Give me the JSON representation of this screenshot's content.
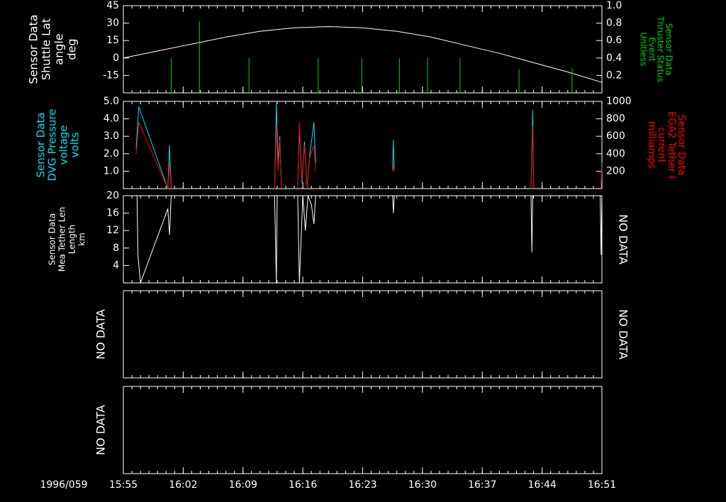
{
  "chart_data": [
    {
      "type": "line",
      "ylabel": [
        "Sensor Data",
        "Shuttle Lat",
        "angle",
        "deg"
      ],
      "ylabel_color": "#ffffff",
      "y2label": [
        "Sensor Data",
        "Thruster Status",
        "Event",
        "Unitless"
      ],
      "y2label_color": "#00d800",
      "xlim": [
        955,
        1011
      ],
      "xticks": [
        955,
        962,
        969,
        976,
        983,
        990,
        997,
        1004,
        1011
      ],
      "ylim": [
        -30,
        45
      ],
      "yticks": [
        -15,
        0,
        15,
        30,
        45
      ],
      "y2lim": [
        0,
        1
      ],
      "y2ticks": [
        0.2,
        0.4,
        0.6,
        0.8,
        {
          "value": 1,
          "label": "1.0"
        }
      ],
      "series": [
        {
          "color": "#ffffff",
          "style": "line",
          "x": [
            955,
            959,
            963,
            967,
            971,
            975,
            979,
            983,
            987,
            991,
            995,
            999,
            1003,
            1007,
            1011
          ],
          "values": [
            0,
            6,
            12,
            18,
            23,
            26,
            27,
            26,
            23,
            18,
            11,
            4,
            -4,
            -12,
            -21
          ]
        },
        {
          "color": "#00d800",
          "style": "spike",
          "axis": "y2",
          "x": [
            960.6,
            963.9,
            969.7,
            977.8,
            982.9,
            987.3,
            990.6,
            994.4,
            1001.3,
            1007.5
          ],
          "values": [
            0.4,
            0.82,
            0.4,
            0.4,
            0.4,
            0.4,
            0.4,
            0.4,
            0.27,
            0.28
          ]
        }
      ]
    },
    {
      "type": "line",
      "ylabel": [
        "Sensor Data",
        "DVG Pressure",
        "voltage",
        "volts"
      ],
      "ylabel_color": "#00e0f0",
      "y2label": [
        "Sensor Data",
        "EGA2 Tether I",
        "current",
        "milliamps"
      ],
      "y2label_color": "#ff0000",
      "xlim": [
        955,
        1011
      ],
      "xticks": [
        955,
        962,
        969,
        976,
        983,
        990,
        997,
        1004,
        1011
      ],
      "ylim": [
        0,
        5
      ],
      "yticks": [
        {
          "value": 1,
          "label": "1.0"
        },
        {
          "value": 2,
          "label": "2.0"
        },
        {
          "value": 3,
          "label": "3.0"
        },
        {
          "value": 4,
          "label": "4.0"
        },
        {
          "value": 5,
          "label": "5.0"
        }
      ],
      "y2lim": [
        0,
        1000
      ],
      "y2ticks": [
        200,
        400,
        600,
        800,
        1000
      ],
      "x": [
        956.5,
        956.8,
        960.2,
        960.4,
        960.6,
        966,
        972.7,
        972.9,
        973.1,
        973.3,
        973.5,
        974.5,
        975.4,
        975.6,
        975.9,
        976.2,
        976.5,
        976.8,
        977.3,
        977.5,
        982,
        986.5,
        986.6,
        986.7,
        995,
        1002.7,
        1002.9,
        1003.0,
        1007,
        1010.9,
        1011
      ],
      "series": [
        {
          "color": "#00e0f0",
          "style": "line",
          "values": [
            2.3,
            4.7,
            0,
            2.5,
            0,
            null,
            0,
            4.9,
            1.5,
            3.0,
            0,
            null,
            0,
            3.5,
            0.3,
            2.7,
            0,
            1.9,
            3.8,
            1.5,
            null,
            1.0,
            2.8,
            1.0,
            null,
            0,
            4.5,
            0,
            null,
            0,
            1.5
          ]
        },
        {
          "color": "#ff0000",
          "style": "line",
          "axis": "y2",
          "values": [
            400,
            760,
            0,
            300,
            0,
            null,
            0,
            730,
            200,
            560,
            0,
            null,
            0,
            760,
            100,
            500,
            0,
            350,
            500,
            200,
            null,
            200,
            260,
            200,
            null,
            0,
            720,
            0,
            null,
            0,
            250
          ]
        }
      ]
    },
    {
      "type": "line",
      "ylabel": [
        "Sensor Data",
        "Mea Tether Len",
        "Length",
        "km"
      ],
      "ylabel_color": "#ffffff",
      "no_data_right": "NO DATA",
      "xlim": [
        955,
        1011
      ],
      "xticks": [
        955,
        962,
        969,
        976,
        983,
        990,
        997,
        1004,
        1011
      ],
      "ylim": [
        0,
        20
      ],
      "yticks": [
        4,
        8,
        12,
        16,
        20
      ],
      "series": [
        {
          "color": "#ffffff",
          "style": "line",
          "x": [
            956.6,
            956.7,
            957.0,
            960.2,
            960.4,
            960.6,
            966,
            972.7,
            972.9,
            973.0,
            974,
            975.4,
            975.6,
            976.0,
            976.3,
            976.6,
            977.0,
            977.3,
            977.5,
            982,
            986.5,
            986.6,
            986.7,
            995,
            1002.7,
            1002.8,
            1002.9,
            1007,
            1010.8,
            1010.9,
            1011
          ],
          "values": [
            20,
            6.5,
            0,
            17,
            11,
            20,
            null,
            20,
            0,
            20,
            null,
            20,
            0,
            20,
            12,
            20,
            18,
            13.5,
            20,
            null,
            20,
            16,
            20,
            null,
            20,
            7,
            20,
            null,
            20,
            6.4,
            20
          ]
        }
      ]
    },
    {
      "type": "line",
      "no_data_left": "NO DATA",
      "no_data_right": "NO DATA",
      "xlim": [
        955,
        1011
      ],
      "xticks": [
        955,
        962,
        969,
        976,
        983,
        990,
        997,
        1004,
        1011
      ]
    },
    {
      "type": "line",
      "no_data_left": "NO DATA",
      "date_label": "1996/059",
      "xlim": [
        955,
        1011
      ],
      "xticks": [
        {
          "value": 955,
          "label": "15:55"
        },
        {
          "value": 962,
          "label": "16:02"
        },
        {
          "value": 969,
          "label": "16:09"
        },
        {
          "value": 976,
          "label": "16:16"
        },
        {
          "value": 983,
          "label": "16:23"
        },
        {
          "value": 990,
          "label": "16:30"
        },
        {
          "value": 997,
          "label": "16:37"
        },
        {
          "value": 1004,
          "label": "16:44"
        },
        {
          "value": 1011,
          "label": "16:51"
        }
      ]
    }
  ]
}
